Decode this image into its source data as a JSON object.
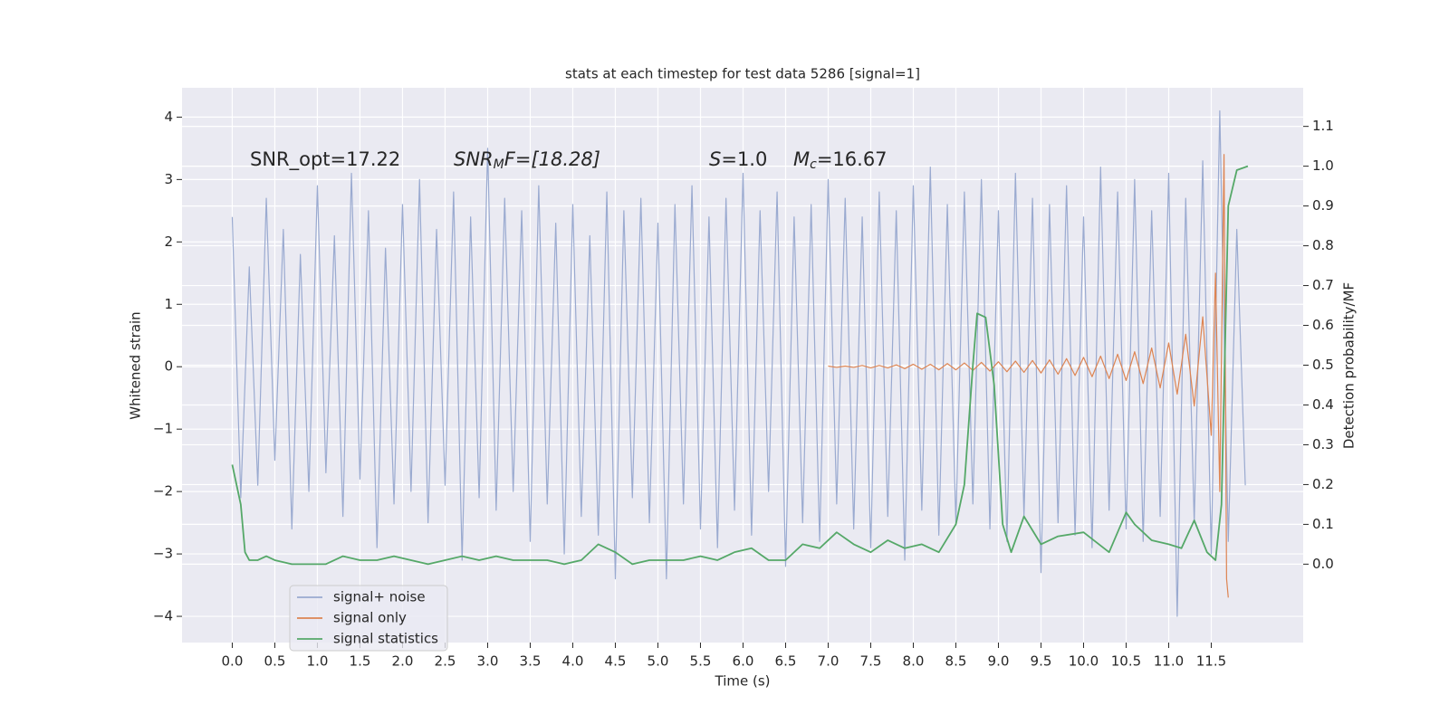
{
  "chart_data": {
    "type": "line",
    "title": "stats at each timestep for test data 5286 [signal=1]",
    "xlabel": "Time (s)",
    "ylabel": "Whitened strain",
    "y2label": "Detection probability/MF",
    "annotations": [
      [
        "SNR_opt=17.22"
      ],
      [
        "SNR",
        "M",
        "F=[18.28]"
      ],
      [
        "S",
        "=1.0"
      ],
      [
        "M",
        "c",
        "=16.67"
      ]
    ],
    "xlim": [
      -0.59,
      12.58
    ],
    "ylim": [
      -4.42,
      4.47
    ],
    "y2lim": [
      -0.197,
      1.197
    ],
    "xticks": [
      {
        "value": 0,
        "label": "0.0"
      },
      {
        "value": 0.5,
        "label": "0.5"
      },
      {
        "value": 1,
        "label": "1.0"
      },
      {
        "value": 1.5,
        "label": "1.5"
      },
      {
        "value": 2,
        "label": "2.0"
      },
      {
        "value": 2.5,
        "label": "2.5"
      },
      {
        "value": 3,
        "label": "3.0"
      },
      {
        "value": 3.5,
        "label": "3.5"
      },
      {
        "value": 4,
        "label": "4.0"
      },
      {
        "value": 4.5,
        "label": "4.5"
      },
      {
        "value": 5,
        "label": "5.0"
      },
      {
        "value": 5.5,
        "label": "5.5"
      },
      {
        "value": 6,
        "label": "6.0"
      },
      {
        "value": 6.5,
        "label": "6.5"
      },
      {
        "value": 7,
        "label": "7.0"
      },
      {
        "value": 7.5,
        "label": "7.5"
      },
      {
        "value": 8,
        "label": "8.0"
      },
      {
        "value": 8.5,
        "label": "8.5"
      },
      {
        "value": 9,
        "label": "9.0"
      },
      {
        "value": 9.5,
        "label": "9.5"
      },
      {
        "value": 10,
        "label": "10.0"
      },
      {
        "value": 10.5,
        "label": "10.5"
      },
      {
        "value": 11,
        "label": "11.0"
      },
      {
        "value": 11.5,
        "label": "11.5"
      }
    ],
    "yticks": [
      {
        "value": -4,
        "label": "−4"
      },
      {
        "value": -3,
        "label": "−3"
      },
      {
        "value": -2,
        "label": "−2"
      },
      {
        "value": -1,
        "label": "−1"
      },
      0,
      1,
      2,
      3,
      4
    ],
    "y2ticks": [
      {
        "value": 0,
        "label": "0.0"
      },
      {
        "value": 0.1,
        "label": "0.1"
      },
      {
        "value": 0.2,
        "label": "0.2"
      },
      {
        "value": 0.3,
        "label": "0.3"
      },
      {
        "value": 0.4,
        "label": "0.4"
      },
      {
        "value": 0.5,
        "label": "0.5"
      },
      {
        "value": 0.6,
        "label": "0.6"
      },
      {
        "value": 0.7,
        "label": "0.7"
      },
      {
        "value": 0.8,
        "label": "0.8"
      },
      {
        "value": 0.9,
        "label": "0.9"
      },
      {
        "value": 1,
        "label": "1.0"
      },
      {
        "value": 1.1,
        "label": "1.1"
      }
    ],
    "grid": true,
    "legend": "lower left",
    "series": [
      {
        "name": "signal+ noise",
        "color": "#9aaad0",
        "axis": "y",
        "x": [
          0,
          0.1,
          0.2,
          0.3,
          0.4,
          0.5,
          0.6,
          0.7,
          0.8,
          0.9,
          1,
          1.1,
          1.2,
          1.3,
          1.4,
          1.5,
          1.6,
          1.7,
          1.8,
          1.9,
          2,
          2.1,
          2.2,
          2.3,
          2.4,
          2.5,
          2.6,
          2.7,
          2.8,
          2.9,
          3,
          3.1,
          3.2,
          3.3,
          3.4,
          3.5,
          3.6,
          3.7,
          3.8,
          3.9,
          4,
          4.1,
          4.2,
          4.3,
          4.4,
          4.5,
          4.6,
          4.7,
          4.8,
          4.9,
          5,
          5.1,
          5.2,
          5.3,
          5.4,
          5.5,
          5.6,
          5.7,
          5.8,
          5.9,
          6,
          6.1,
          6.2,
          6.3,
          6.4,
          6.5,
          6.6,
          6.7,
          6.8,
          6.9,
          7,
          7.1,
          7.2,
          7.3,
          7.4,
          7.5,
          7.6,
          7.7,
          7.8,
          7.9,
          8,
          8.1,
          8.2,
          8.3,
          8.4,
          8.5,
          8.6,
          8.7,
          8.8,
          8.9,
          9,
          9.1,
          9.2,
          9.3,
          9.4,
          9.5,
          9.6,
          9.7,
          9.8,
          9.9,
          10,
          10.1,
          10.2,
          10.3,
          10.4,
          10.5,
          10.6,
          10.7,
          10.8,
          10.9,
          11,
          11.1,
          11.2,
          11.3,
          11.4,
          11.5,
          11.6,
          11.7,
          11.8,
          11.9
        ],
        "values": [
          2.4,
          -2.1,
          1.6,
          -1.9,
          2.7,
          -1.5,
          2.2,
          -2.6,
          1.8,
          -2.0,
          2.9,
          -1.7,
          2.1,
          -2.4,
          3.1,
          -1.8,
          2.5,
          -2.9,
          1.9,
          -2.2,
          2.6,
          -2.0,
          3.0,
          -2.5,
          2.2,
          -1.9,
          2.8,
          -3.1,
          2.4,
          -2.1,
          3.5,
          -2.3,
          2.7,
          -2.0,
          2.5,
          -2.8,
          2.9,
          -2.2,
          2.3,
          -3.0,
          2.6,
          -2.4,
          2.1,
          -2.7,
          2.8,
          -3.4,
          2.5,
          -2.1,
          2.7,
          -2.5,
          2.3,
          -3.4,
          2.6,
          -2.2,
          2.9,
          -2.6,
          2.4,
          -2.9,
          2.7,
          -2.3,
          3.1,
          -2.7,
          2.5,
          -2.0,
          2.8,
          -3.2,
          2.4,
          -2.5,
          2.6,
          -2.8,
          3.0,
          -2.2,
          2.7,
          -2.6,
          2.4,
          -2.9,
          2.8,
          -2.4,
          2.5,
          -3.1,
          2.9,
          -2.3,
          3.2,
          -2.7,
          2.6,
          -2.5,
          2.8,
          -2.2,
          3.0,
          -2.6,
          2.5,
          -2.8,
          3.1,
          -2.4,
          2.7,
          -3.3,
          2.6,
          -2.5,
          2.9,
          -2.7,
          2.4,
          -2.9,
          3.2,
          -2.3,
          2.8,
          -2.6,
          3.0,
          -2.8,
          2.5,
          -2.4,
          3.1,
          -4.0,
          2.7,
          -2.5,
          3.3,
          -3.0,
          4.1,
          -2.8,
          2.2,
          -1.9
        ]
      },
      {
        "name": "signal only",
        "color": "#dd8452",
        "axis": "y",
        "x": [
          7,
          7.1,
          7.2,
          7.3,
          7.4,
          7.5,
          7.6,
          7.7,
          7.8,
          7.9,
          8,
          8.1,
          8.2,
          8.3,
          8.4,
          8.5,
          8.6,
          8.7,
          8.8,
          8.9,
          9,
          9.1,
          9.2,
          9.3,
          9.4,
          9.5,
          9.6,
          9.7,
          9.8,
          9.9,
          10,
          10.1,
          10.2,
          10.3,
          10.4,
          10.5,
          10.6,
          10.7,
          10.8,
          10.9,
          11,
          11.1,
          11.2,
          11.3,
          11.4,
          11.5,
          11.55,
          11.6,
          11.65,
          11.68,
          11.7
        ],
        "values": [
          0.01,
          -0.01,
          0.01,
          -0.01,
          0.02,
          -0.02,
          0.02,
          -0.02,
          0.03,
          -0.03,
          0.04,
          -0.04,
          0.04,
          -0.05,
          0.05,
          -0.05,
          0.06,
          -0.06,
          0.07,
          -0.07,
          0.08,
          -0.08,
          0.09,
          -0.09,
          0.1,
          -0.1,
          0.11,
          -0.12,
          0.13,
          -0.14,
          0.15,
          -0.16,
          0.17,
          -0.19,
          0.2,
          -0.22,
          0.24,
          -0.27,
          0.3,
          -0.34,
          0.38,
          -0.44,
          0.52,
          -0.63,
          0.8,
          -1.1,
          1.5,
          -2.0,
          3.4,
          -3.4,
          -3.7
        ]
      },
      {
        "name": "signal statistics",
        "color": "#55a868",
        "axis": "y2",
        "x": [
          0,
          0.1,
          0.15,
          0.2,
          0.3,
          0.4,
          0.5,
          0.7,
          0.9,
          1.1,
          1.3,
          1.5,
          1.7,
          1.9,
          2.1,
          2.3,
          2.5,
          2.7,
          2.9,
          3.1,
          3.3,
          3.5,
          3.7,
          3.9,
          4.1,
          4.3,
          4.5,
          4.7,
          4.9,
          5.1,
          5.3,
          5.5,
          5.7,
          5.9,
          6.1,
          6.3,
          6.5,
          6.7,
          6.9,
          7.1,
          7.3,
          7.5,
          7.7,
          7.9,
          8.1,
          8.3,
          8.5,
          8.6,
          8.7,
          8.75,
          8.85,
          8.95,
          9.05,
          9.15,
          9.3,
          9.5,
          9.7,
          10,
          10.3,
          10.5,
          10.6,
          10.8,
          11,
          11.15,
          11.3,
          11.45,
          11.55,
          11.62,
          11.7,
          11.8,
          11.93
        ],
        "values": [
          0.25,
          0.15,
          0.03,
          0.01,
          0.01,
          0.02,
          0.01,
          0.0,
          0.0,
          0.0,
          0.02,
          0.01,
          0.01,
          0.02,
          0.01,
          0.0,
          0.01,
          0.02,
          0.01,
          0.02,
          0.01,
          0.01,
          0.01,
          0.0,
          0.01,
          0.05,
          0.03,
          0.0,
          0.01,
          0.01,
          0.01,
          0.02,
          0.01,
          0.03,
          0.04,
          0.01,
          0.01,
          0.05,
          0.04,
          0.08,
          0.05,
          0.03,
          0.06,
          0.04,
          0.05,
          0.03,
          0.1,
          0.2,
          0.5,
          0.63,
          0.62,
          0.45,
          0.1,
          0.03,
          0.12,
          0.05,
          0.07,
          0.08,
          0.03,
          0.13,
          0.1,
          0.06,
          0.05,
          0.04,
          0.11,
          0.03,
          0.01,
          0.15,
          0.9,
          0.99,
          1.0
        ]
      }
    ]
  }
}
